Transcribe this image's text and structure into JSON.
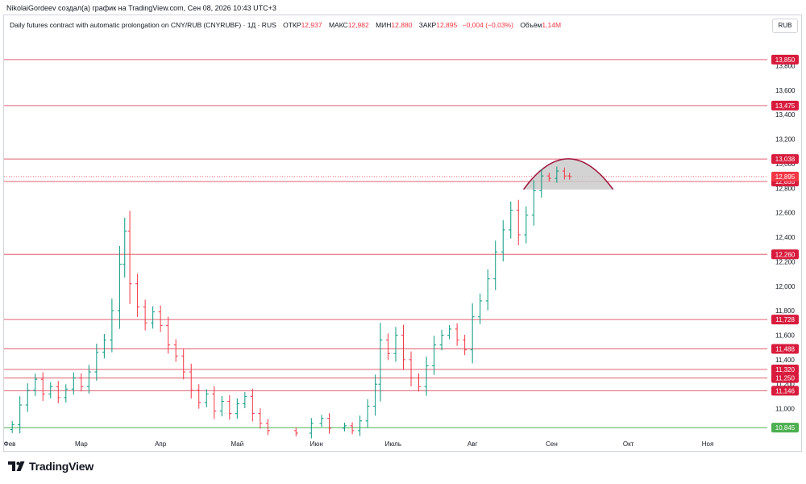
{
  "header": {
    "credit": "NikolaiGordeev создал(а) график на TradingView.com, Сен 08, 2026 10:43 UTC+3",
    "instrument": "Daily futures contract with automatic prolongation on CNY/RUB (CNYRUBF) · 1Д · RUS",
    "open_label": "ОТКР",
    "open": "12,937",
    "high_label": "МАКС",
    "high": "12,982",
    "low_label": "МИН",
    "low": "12,880",
    "close_label": "ЗАКР",
    "close": "12,895",
    "change": "−0,004 (−0,03%)",
    "volume_label": "Объём",
    "volume": "1,14M"
  },
  "currency": "RUB",
  "brand": {
    "name": "TradingView",
    "logo_icon": "tradingview-logo-icon"
  },
  "colors": {
    "up": "#089981",
    "down": "#f23645",
    "level": "#e06070",
    "support": "#4caf50",
    "arc": "#a0143c",
    "fill": "#c8c8c8"
  },
  "chart_data": {
    "type": "bar",
    "y_ticks": [
      "11,000",
      "11,200",
      "11,400",
      "11,600",
      "11,800",
      "12,000",
      "12,200",
      "12,400",
      "12,600",
      "12,800",
      "13,000",
      "13,200",
      "13,400",
      "13,600",
      "13,800"
    ],
    "ylim": [
      10780,
      14060
    ],
    "x_labels": [
      "Фев",
      "Мар",
      "Апр",
      "Май",
      "Июн",
      "Июль",
      "Авг",
      "Сен",
      "Окт",
      "Ноя"
    ],
    "levels": [
      {
        "label": "13,850",
        "value": 13850,
        "kind": "resistance"
      },
      {
        "label": "13,475",
        "value": 13475,
        "kind": "resistance"
      },
      {
        "label": "13,038",
        "value": 13038,
        "kind": "resistance"
      },
      {
        "label": "12,855",
        "value": 12855,
        "kind": "resistance"
      },
      {
        "label": "12,260",
        "value": 12260,
        "kind": "resistance"
      },
      {
        "label": "11,728",
        "value": 11728,
        "kind": "resistance"
      },
      {
        "label": "11,488",
        "value": 11488,
        "kind": "resistance"
      },
      {
        "label": "11,320",
        "value": 11320,
        "kind": "resistance"
      },
      {
        "label": "11,250",
        "value": 11250,
        "kind": "resistance"
      },
      {
        "label": "11,146",
        "value": 11146,
        "kind": "resistance"
      },
      {
        "label": "10,845",
        "value": 10845,
        "kind": "support"
      }
    ],
    "last_price": {
      "label": "12,895",
      "value": 12895
    },
    "dome": {
      "start_date": "2026-08-21",
      "end_date": "2026-09-25",
      "base": 12790,
      "top": 13040
    },
    "series": [
      {
        "date": "2026-02-02",
        "close": 10870
      },
      {
        "date": "2026-02-05",
        "close": 11030
      },
      {
        "date": "2026-02-08",
        "close": 11150
      },
      {
        "date": "2026-02-11",
        "close": 11240
      },
      {
        "date": "2026-02-14",
        "close": 11120
      },
      {
        "date": "2026-02-17",
        "close": 11180
      },
      {
        "date": "2026-02-20",
        "close": 11090
      },
      {
        "date": "2026-02-23",
        "close": 11160
      },
      {
        "date": "2026-02-26",
        "close": 11250
      },
      {
        "date": "2026-03-01",
        "close": 11180
      },
      {
        "date": "2026-03-04",
        "close": 11300
      },
      {
        "date": "2026-03-07",
        "close": 11460
      },
      {
        "date": "2026-03-10",
        "close": 11560
      },
      {
        "date": "2026-03-13",
        "close": 11800
      },
      {
        "date": "2026-03-16",
        "close": 12180
      },
      {
        "date": "2026-03-18",
        "close": 12450
      },
      {
        "date": "2026-03-20",
        "close": 12020
      },
      {
        "date": "2026-03-23",
        "close": 11830
      },
      {
        "date": "2026-03-26",
        "close": 11700
      },
      {
        "date": "2026-03-29",
        "close": 11790
      },
      {
        "date": "2026-04-01",
        "close": 11680
      },
      {
        "date": "2026-04-04",
        "close": 11520
      },
      {
        "date": "2026-04-07",
        "close": 11430
      },
      {
        "date": "2026-04-10",
        "close": 11300
      },
      {
        "date": "2026-04-13",
        "close": 11150
      },
      {
        "date": "2026-04-16",
        "close": 11050
      },
      {
        "date": "2026-04-19",
        "close": 11120
      },
      {
        "date": "2026-04-22",
        "close": 10980
      },
      {
        "date": "2026-04-25",
        "close": 11060
      },
      {
        "date": "2026-04-28",
        "close": 10960
      },
      {
        "date": "2026-05-01",
        "close": 11040
      },
      {
        "date": "2026-05-04",
        "close": 11100
      },
      {
        "date": "2026-05-07",
        "close": 10960
      },
      {
        "date": "2026-05-10",
        "close": 10880
      },
      {
        "date": "2026-05-13",
        "close": 10820
      },
      {
        "date": "2026-05-24",
        "close": 10800
      },
      {
        "date": "2026-05-30",
        "close": 10880
      },
      {
        "date": "2026-06-03",
        "close": 10920
      },
      {
        "date": "2026-06-06",
        "close": 10840
      },
      {
        "date": "2026-06-12",
        "close": 10860
      },
      {
        "date": "2026-06-15",
        "close": 10820
      },
      {
        "date": "2026-06-18",
        "close": 10900
      },
      {
        "date": "2026-06-21",
        "close": 11020
      },
      {
        "date": "2026-06-24",
        "close": 11200
      },
      {
        "date": "2026-06-26",
        "close": 11560
      },
      {
        "date": "2026-06-29",
        "close": 11450
      },
      {
        "date": "2026-07-02",
        "close": 11600
      },
      {
        "date": "2026-07-05",
        "close": 11400
      },
      {
        "date": "2026-07-08",
        "close": 11250
      },
      {
        "date": "2026-07-11",
        "close": 11180
      },
      {
        "date": "2026-07-14",
        "close": 11350
      },
      {
        "date": "2026-07-17",
        "close": 11520
      },
      {
        "date": "2026-07-20",
        "close": 11600
      },
      {
        "date": "2026-07-23",
        "close": 11650
      },
      {
        "date": "2026-07-26",
        "close": 11560
      },
      {
        "date": "2026-07-29",
        "close": 11480
      },
      {
        "date": "2026-08-01",
        "close": 11750
      },
      {
        "date": "2026-08-04",
        "close": 11880
      },
      {
        "date": "2026-08-07",
        "close": 12060
      },
      {
        "date": "2026-08-10",
        "close": 12280
      },
      {
        "date": "2026-08-13",
        "close": 12460
      },
      {
        "date": "2026-08-16",
        "close": 12620
      },
      {
        "date": "2026-08-19",
        "close": 12420
      },
      {
        "date": "2026-08-22",
        "close": 12580
      },
      {
        "date": "2026-08-25",
        "close": 12780
      },
      {
        "date": "2026-08-28",
        "close": 12900
      },
      {
        "date": "2026-08-31",
        "close": 12880
      },
      {
        "date": "2026-09-03",
        "close": 12940
      },
      {
        "date": "2026-09-06",
        "close": 12900
      },
      {
        "date": "2026-09-08",
        "close": 12895
      }
    ]
  }
}
